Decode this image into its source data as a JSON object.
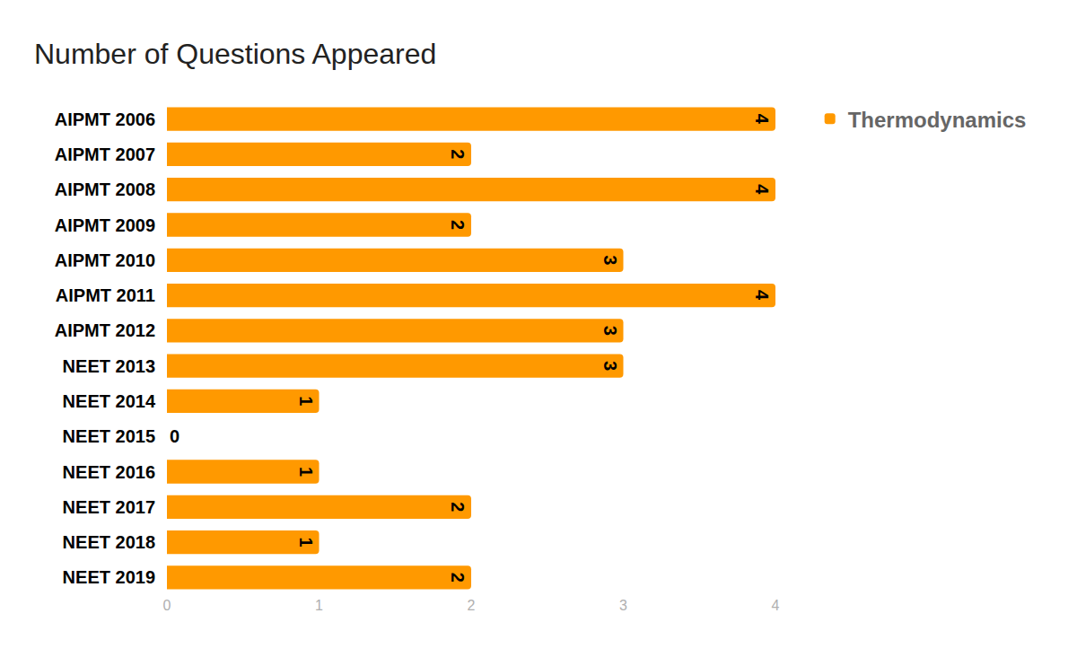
{
  "chart_data": {
    "type": "bar",
    "title": "Number of Questions Appeared",
    "orientation": "horizontal",
    "categories": [
      "AIPMT 2006",
      "AIPMT 2007",
      "AIPMT 2008",
      "AIPMT 2009",
      "AIPMT 2010",
      "AIPMT 2011",
      "AIPMT 2012",
      "NEET 2013",
      "NEET 2014",
      "NEET 2015",
      "NEET 2016",
      "NEET 2017",
      "NEET 2018",
      "NEET 2019"
    ],
    "series": [
      {
        "name": "Thermodynamics",
        "color": "#ff9900",
        "values": [
          4,
          2,
          4,
          2,
          3,
          4,
          3,
          3,
          1,
          0,
          1,
          2,
          1,
          2
        ]
      }
    ],
    "xlim": [
      0,
      4
    ],
    "xticks": [
      0,
      1,
      2,
      3,
      4
    ],
    "grid": false,
    "legend": "top-right",
    "data_labels": true
  }
}
